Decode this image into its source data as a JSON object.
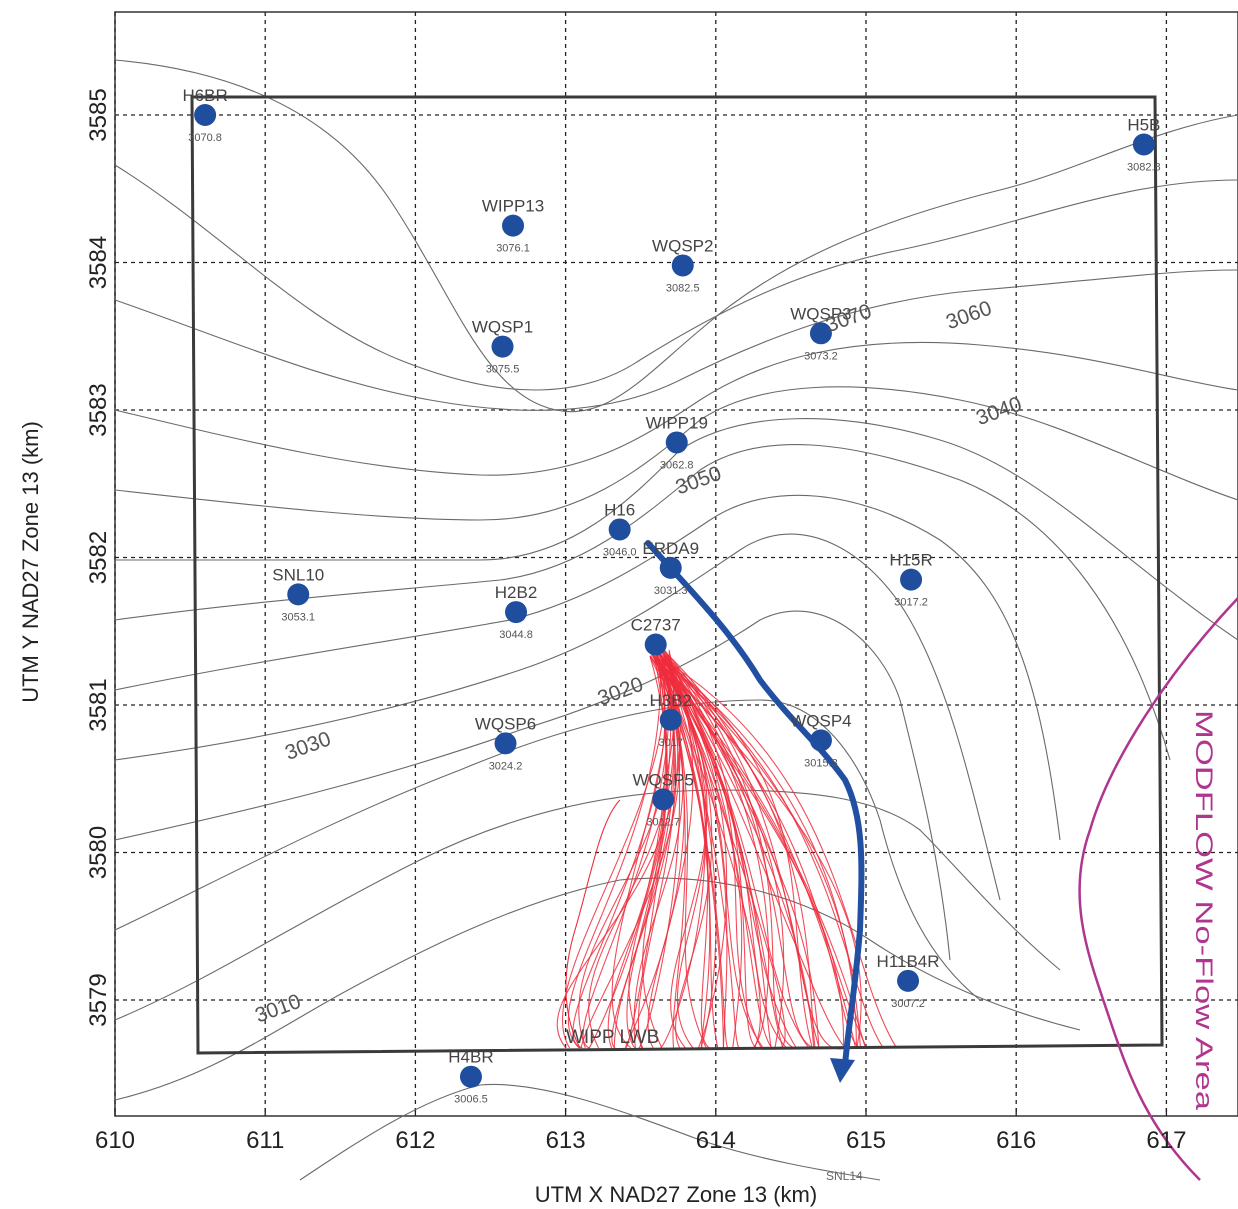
{
  "axes": {
    "xlabel": "UTM X NAD27 Zone 13 (km)",
    "ylabel": "UTM Y NAD27 Zone 13 (km)",
    "xlim": [
      610,
      617.5
    ],
    "ylim": [
      3578.2,
      3586.0
    ],
    "xticks": [
      "610",
      "611",
      "612",
      "613",
      "614",
      "615",
      "616",
      "617"
    ],
    "yticks": [
      "3579",
      "3580",
      "3581",
      "3582",
      "3583",
      "3584",
      "3585"
    ],
    "grid": "dashed"
  },
  "wells": [
    {
      "name": "H6BR",
      "head": "3070.8",
      "x": 610.6,
      "y": 3585.0
    },
    {
      "name": "H5B",
      "head": "3082.8",
      "x": 616.85,
      "y": 3584.8
    },
    {
      "name": "WIPP13",
      "head": "3076.1",
      "x": 612.65,
      "y": 3584.25
    },
    {
      "name": "WQSP2",
      "head": "3082.5",
      "x": 613.78,
      "y": 3583.98
    },
    {
      "name": "WQSP3",
      "head": "3073.2",
      "x": 614.7,
      "y": 3583.52
    },
    {
      "name": "WQSP1",
      "head": "3075.5",
      "x": 612.58,
      "y": 3583.43
    },
    {
      "name": "WIPP19",
      "head": "3062.8",
      "x": 613.74,
      "y": 3582.78
    },
    {
      "name": "H16",
      "head": "3046.0",
      "x": 613.36,
      "y": 3582.19
    },
    {
      "name": "ERDA9",
      "head": "3031.3",
      "x": 613.7,
      "y": 3581.93
    },
    {
      "name": "H15R",
      "head": "3017.2",
      "x": 615.3,
      "y": 3581.85
    },
    {
      "name": "SNL10",
      "head": "3053.1",
      "x": 611.22,
      "y": 3581.75
    },
    {
      "name": "H2B2",
      "head": "3044.8",
      "x": 612.67,
      "y": 3581.63
    },
    {
      "name": "C2737",
      "head": "",
      "x": 613.6,
      "y": 3581.41
    },
    {
      "name": "H3B2",
      "head": "3017",
      "x": 613.7,
      "y": 3580.9
    },
    {
      "name": "WQSP4",
      "head": "3015.3",
      "x": 614.7,
      "y": 3580.76
    },
    {
      "name": "WQSP6",
      "head": "3024.2",
      "x": 612.6,
      "y": 3580.74
    },
    {
      "name": "WQSP5",
      "head": "3012.7",
      "x": 613.65,
      "y": 3580.36
    },
    {
      "name": "H11B4R",
      "head": "3007.2",
      "x": 615.28,
      "y": 3579.13
    },
    {
      "name": "H4BR",
      "head": "3006.5",
      "x": 612.37,
      "y": 3578.48
    }
  ],
  "contour_labels": [
    {
      "text": "3070",
      "x": 614.9,
      "y": 3583.58
    },
    {
      "text": "3060",
      "x": 615.7,
      "y": 3583.6
    },
    {
      "text": "3050",
      "x": 613.9,
      "y": 3582.48
    },
    {
      "text": "3040",
      "x": 615.9,
      "y": 3582.95
    },
    {
      "text": "3030",
      "x": 611.3,
      "y": 3580.68
    },
    {
      "text": "3020",
      "x": 613.38,
      "y": 3581.05
    },
    {
      "text": "3010",
      "x": 611.1,
      "y": 3578.9
    }
  ],
  "labels": {
    "lwb": "WIPP LWB",
    "noflow": "MODFLOW No-Flow Area",
    "partial": "SNL14"
  },
  "colors": {
    "well": "#1f4e9e",
    "path_main": "#2150a3",
    "path_mc": "#ee2d3d",
    "noflow": "#b0358f",
    "contour": "#555555",
    "grid": "#222222"
  }
}
